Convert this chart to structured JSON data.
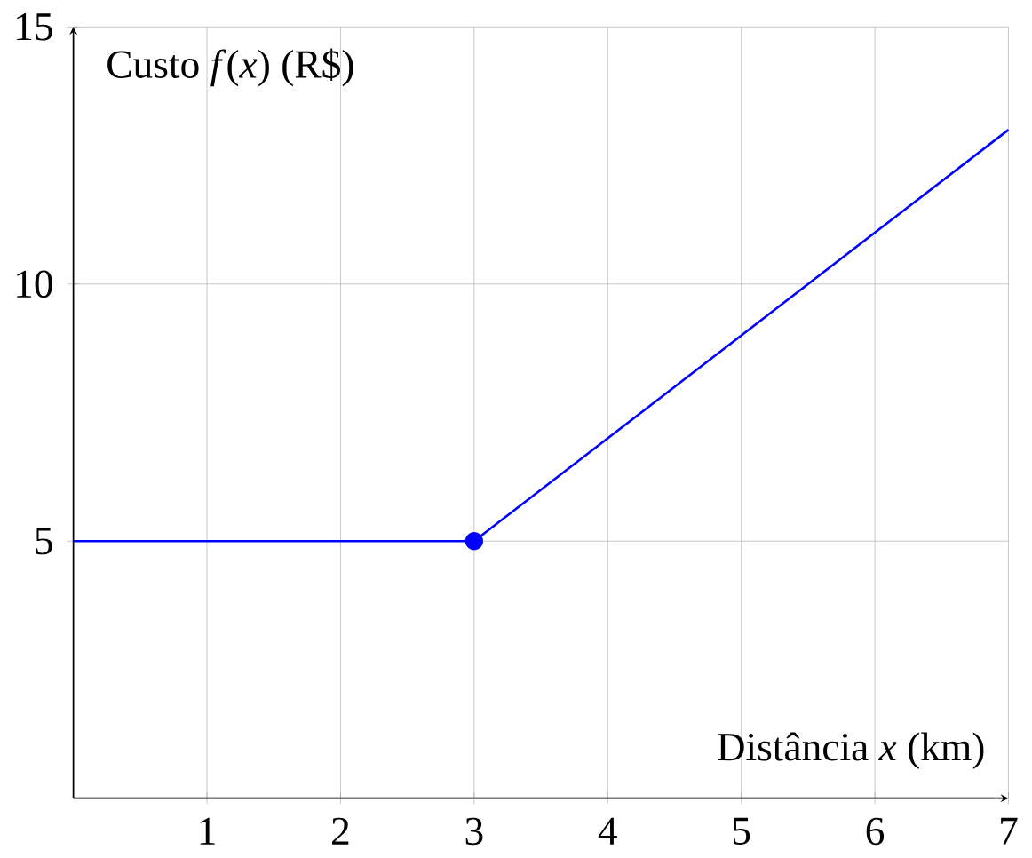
{
  "chart_data": {
    "type": "line",
    "xlabel": "Distância *x* (km)",
    "ylabel": "Custo *f*(*x*) (R$)",
    "xlim": [
      0,
      7
    ],
    "ylim": [
      0,
      15
    ],
    "xticks": [
      1,
      2,
      3,
      4,
      5,
      6,
      7
    ],
    "yticks": [
      5,
      10,
      15
    ],
    "grid": true,
    "series": [
      {
        "color": "#0000ff",
        "x": [
          0,
          3,
          7
        ],
        "values": [
          5,
          5,
          13
        ]
      },
      {
        "type": "scatter",
        "marker": "circle",
        "color": "#0000ff",
        "x": [
          3
        ],
        "values": [
          5
        ]
      }
    ]
  }
}
